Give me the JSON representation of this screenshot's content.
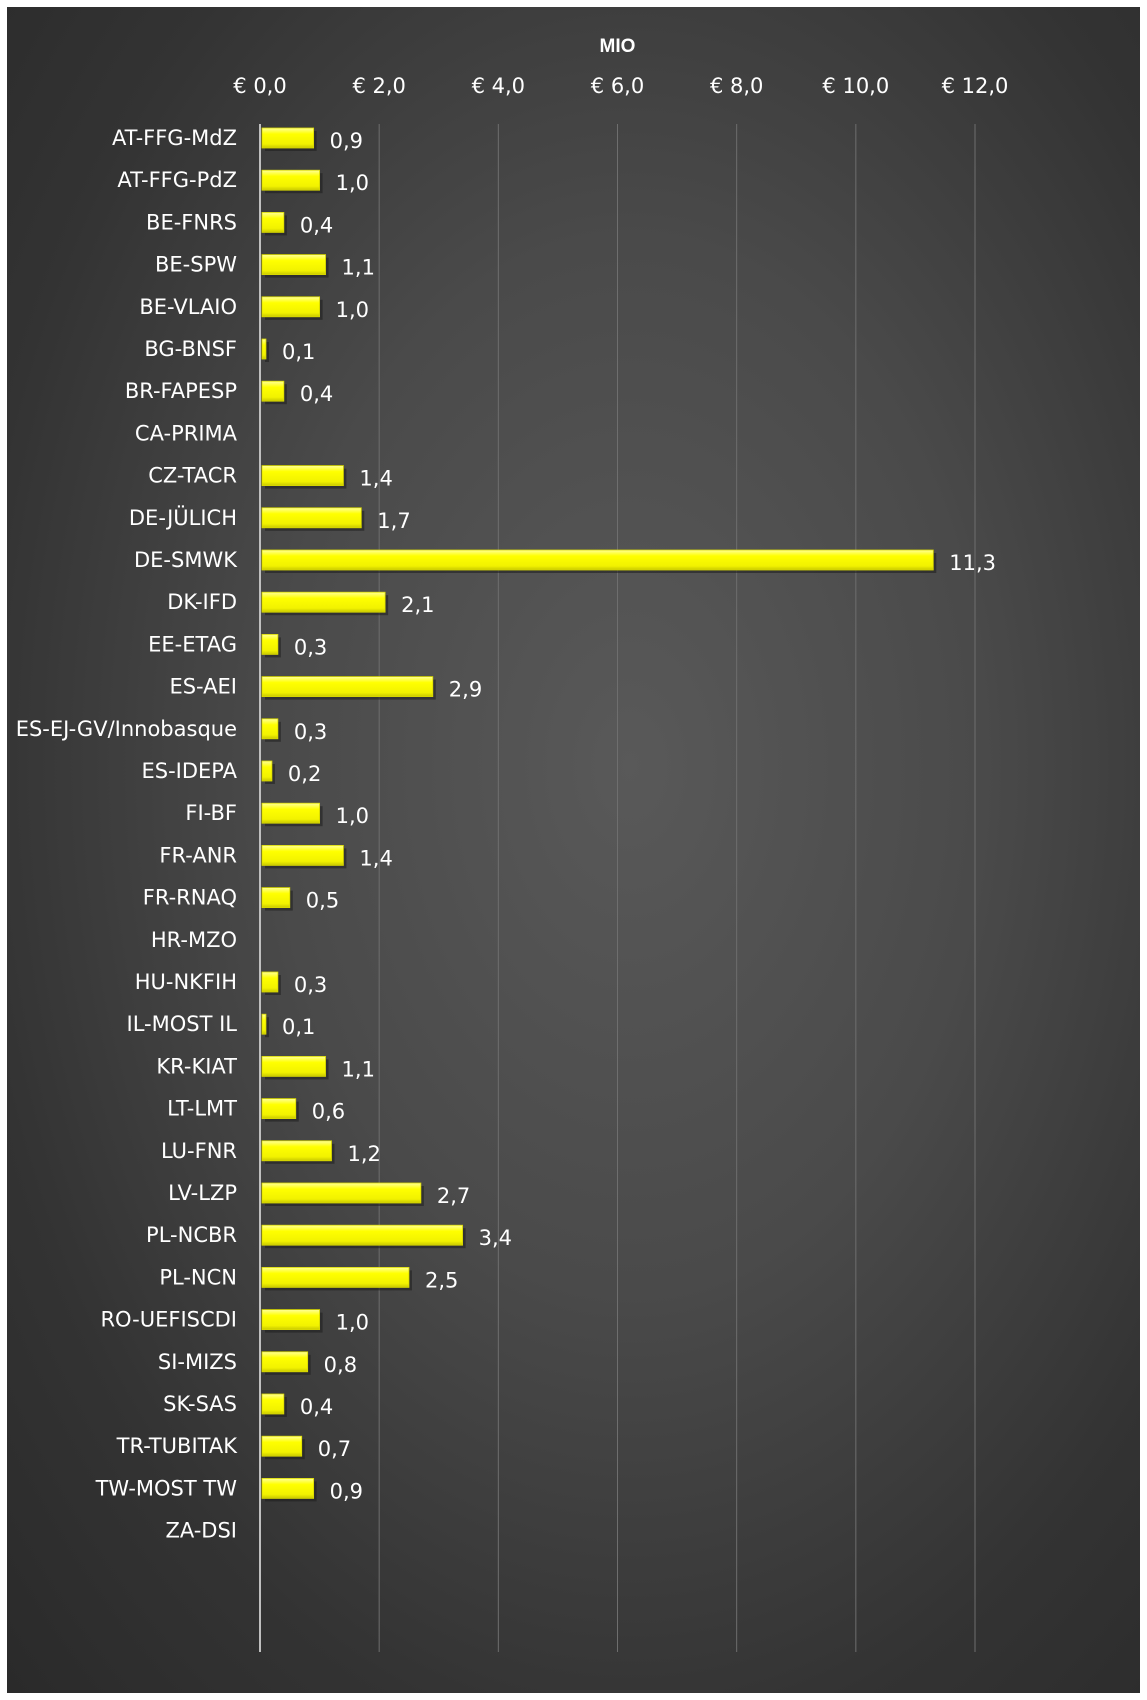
{
  "chart_data": {
    "type": "bar",
    "orientation": "horizontal",
    "axis_title": "MIO",
    "x_ticks": [
      "€ 0,0",
      "€ 2,0",
      "€ 4,0",
      "€ 6,0",
      "€ 8,0",
      "€ 10,0",
      "€ 12,0"
    ],
    "xlim": [
      0,
      12
    ],
    "grid": true,
    "bar_color": "#ffff00",
    "bar_shadow_color": "#1e1e1e",
    "background_color": "#4d4d4d",
    "categories": [
      "AT-FFG-MdZ",
      "AT-FFG-PdZ",
      "BE-FNRS",
      "BE-SPW",
      "BE-VLAIO",
      "BG-BNSF",
      "BR-FAPESP",
      "CA-PRIMA",
      "CZ-TACR",
      "DE-JÜLICH",
      "DE-SMWK",
      "DK-IFD",
      "EE-ETAG",
      "ES-AEI",
      "ES-EJ-GV/Innobasque",
      "ES-IDEPA",
      "FI-BF",
      "FR-ANR",
      "FR-RNAQ",
      "HR-MZO",
      "HU-NKFIH",
      "IL-MOST IL",
      "KR-KIAT",
      "LT-LMT",
      "LU-FNR",
      "LV-LZP",
      "PL-NCBR",
      "PL-NCN",
      "RO-UEFISCDI",
      "SI-MIZS",
      "SK-SAS",
      "TR-TUBITAK",
      "TW-MOST TW",
      "ZA-DSI"
    ],
    "values": [
      0.9,
      1.0,
      0.4,
      1.1,
      1.0,
      0.1,
      0.4,
      null,
      1.4,
      1.7,
      11.3,
      2.1,
      0.3,
      2.9,
      0.3,
      0.2,
      1.0,
      1.4,
      0.5,
      null,
      0.3,
      0.1,
      1.1,
      0.6,
      1.2,
      2.7,
      3.4,
      2.5,
      1.0,
      0.8,
      0.4,
      0.7,
      0.9,
      null
    ],
    "data_labels": [
      "0,9",
      "1,0",
      "0,4",
      "1,1",
      "1,0",
      "0,1",
      "0,4",
      "",
      "1,4",
      "1,7",
      "11,3",
      "2,1",
      "0,3",
      "2,9",
      "0,3",
      "0,2",
      "1,0",
      "1,4",
      "0,5",
      "",
      "0,3",
      "0,1",
      "1,1",
      "0,6",
      "1,2",
      "2,7",
      "3,4",
      "2,5",
      "1,0",
      "0,8",
      "0,4",
      "0,7",
      "0,9",
      ""
    ]
  }
}
